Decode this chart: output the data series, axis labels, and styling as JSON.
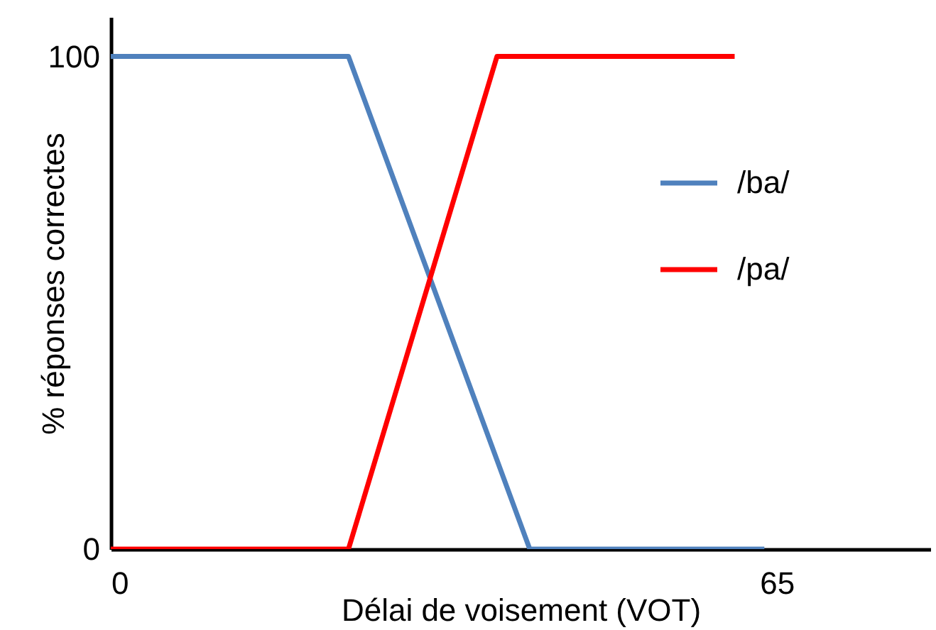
{
  "chart_data": {
    "type": "line",
    "xlabel": "Délai de voisement (VOT)",
    "ylabel": "% réponses correctes",
    "xlim": [
      0,
      80
    ],
    "xticks": [
      0,
      65
    ],
    "ylim": [
      0,
      108
    ],
    "yticks": [
      0,
      100
    ],
    "grid": false,
    "legend": "top right",
    "line_style": "solid",
    "marker": "none",
    "series": [
      {
        "name": "/ba/",
        "color": "#4f81bd",
        "x": [
          0,
          23.2,
          40.9,
          63.8
        ],
        "values": [
          100,
          100,
          0,
          0
        ]
      },
      {
        "name": "/pa/",
        "color": "#ff0000",
        "x": [
          0,
          23.2,
          37.7,
          60.9
        ],
        "values": [
          0,
          0,
          100,
          100
        ]
      }
    ]
  }
}
